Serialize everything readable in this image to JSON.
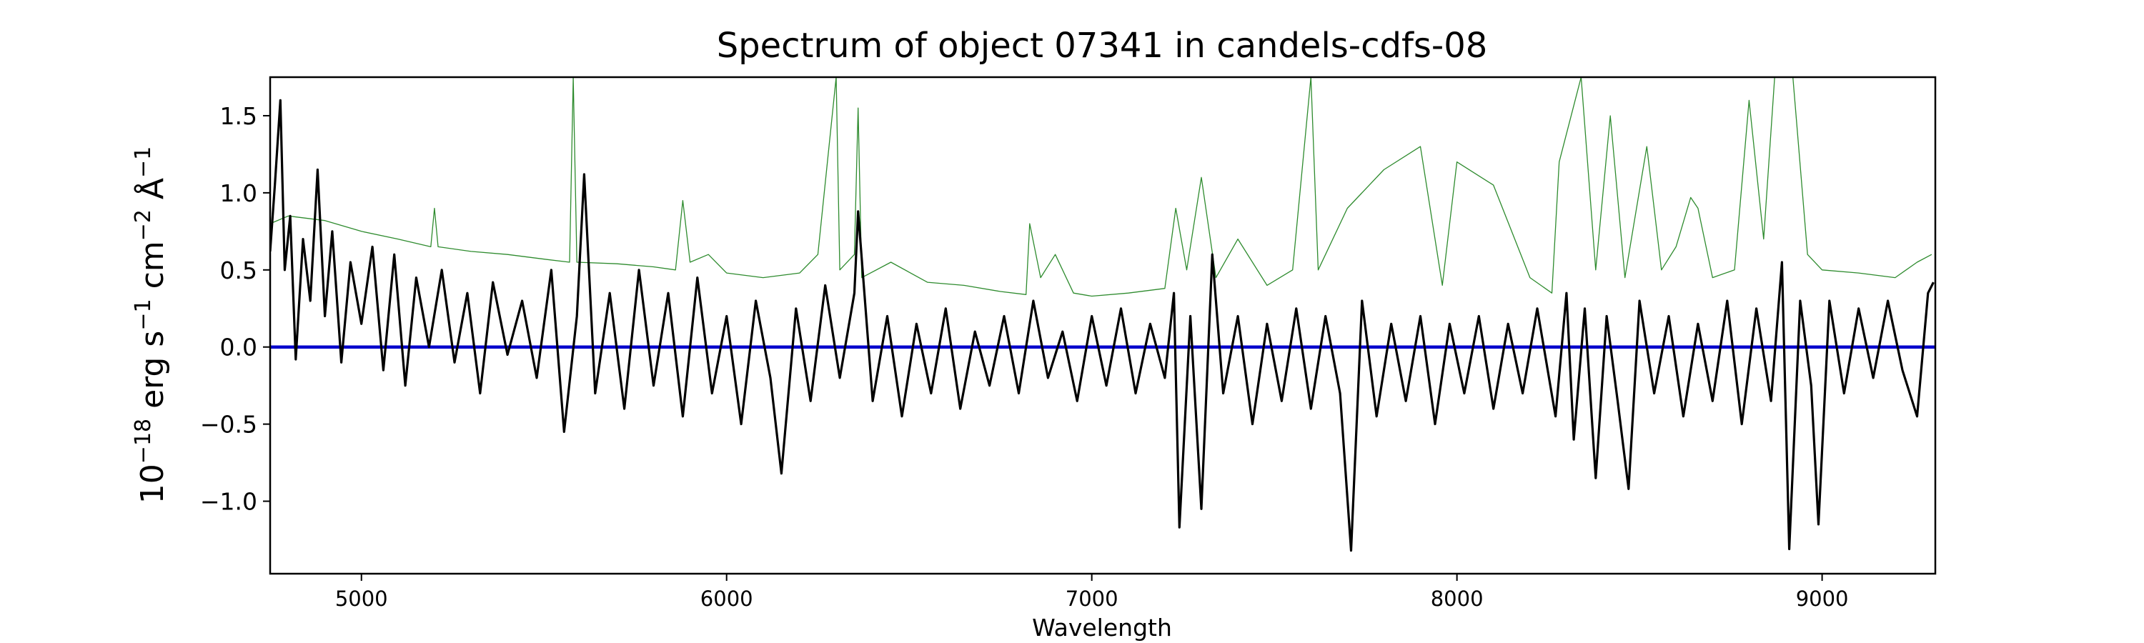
{
  "chart_data": {
    "type": "line",
    "title": "Spectrum of object 07341 in candels-cdfs-08",
    "xlabel": "Wavelength",
    "ylabel": {
      "base": "10",
      "exp1": "−18",
      "w1": " erg s",
      "exp2": "−1",
      "w2": " cm",
      "exp3": "−2",
      "w3": " Å",
      "exp4": "−1"
    },
    "xlim": [
      4750,
      9310
    ],
    "ylim": [
      -1.47,
      1.75
    ],
    "x_ticks": [
      5000,
      6000,
      7000,
      8000,
      9000
    ],
    "x_tick_labels": [
      "5000",
      "6000",
      "7000",
      "8000",
      "9000"
    ],
    "y_ticks": [
      -1.0,
      -0.5,
      0.0,
      0.5,
      1.0,
      1.5
    ],
    "y_tick_labels": [
      "−1.0",
      "−0.5",
      "0.0",
      "0.5",
      "1.0",
      "1.5"
    ],
    "grid": false,
    "legend": "none",
    "series": [
      {
        "role": "flux",
        "color": "#000000",
        "points": [
          [
            4750,
            0.62
          ],
          [
            4763,
            1.05
          ],
          [
            4778,
            1.6
          ],
          [
            4790,
            0.5
          ],
          [
            4805,
            0.85
          ],
          [
            4820,
            -0.08
          ],
          [
            4840,
            0.7
          ],
          [
            4860,
            0.3
          ],
          [
            4880,
            1.15
          ],
          [
            4900,
            0.2
          ],
          [
            4920,
            0.75
          ],
          [
            4945,
            -0.1
          ],
          [
            4970,
            0.55
          ],
          [
            5000,
            0.15
          ],
          [
            5030,
            0.65
          ],
          [
            5060,
            -0.15
          ],
          [
            5090,
            0.6
          ],
          [
            5120,
            -0.25
          ],
          [
            5150,
            0.45
          ],
          [
            5185,
            0.0
          ],
          [
            5220,
            0.5
          ],
          [
            5255,
            -0.1
          ],
          [
            5290,
            0.35
          ],
          [
            5325,
            -0.3
          ],
          [
            5360,
            0.42
          ],
          [
            5400,
            -0.05
          ],
          [
            5440,
            0.3
          ],
          [
            5480,
            -0.2
          ],
          [
            5520,
            0.5
          ],
          [
            5555,
            -0.55
          ],
          [
            5590,
            0.2
          ],
          [
            5610,
            1.12
          ],
          [
            5640,
            -0.3
          ],
          [
            5680,
            0.35
          ],
          [
            5720,
            -0.4
          ],
          [
            5760,
            0.5
          ],
          [
            5800,
            -0.25
          ],
          [
            5840,
            0.35
          ],
          [
            5880,
            -0.45
          ],
          [
            5920,
            0.45
          ],
          [
            5960,
            -0.3
          ],
          [
            6000,
            0.2
          ],
          [
            6040,
            -0.5
          ],
          [
            6080,
            0.3
          ],
          [
            6120,
            -0.2
          ],
          [
            6150,
            -0.82
          ],
          [
            6190,
            0.25
          ],
          [
            6230,
            -0.35
          ],
          [
            6270,
            0.4
          ],
          [
            6310,
            -0.2
          ],
          [
            6350,
            0.35
          ],
          [
            6360,
            0.88
          ],
          [
            6400,
            -0.35
          ],
          [
            6440,
            0.2
          ],
          [
            6480,
            -0.45
          ],
          [
            6520,
            0.15
          ],
          [
            6560,
            -0.3
          ],
          [
            6600,
            0.25
          ],
          [
            6640,
            -0.4
          ],
          [
            6680,
            0.1
          ],
          [
            6720,
            -0.25
          ],
          [
            6760,
            0.2
          ],
          [
            6800,
            -0.3
          ],
          [
            6840,
            0.3
          ],
          [
            6880,
            -0.2
          ],
          [
            6920,
            0.1
          ],
          [
            6960,
            -0.35
          ],
          [
            7000,
            0.2
          ],
          [
            7040,
            -0.25
          ],
          [
            7080,
            0.25
          ],
          [
            7120,
            -0.3
          ],
          [
            7160,
            0.15
          ],
          [
            7200,
            -0.2
          ],
          [
            7225,
            0.35
          ],
          [
            7240,
            -1.17
          ],
          [
            7270,
            0.2
          ],
          [
            7300,
            -1.05
          ],
          [
            7330,
            0.6
          ],
          [
            7360,
            -0.3
          ],
          [
            7400,
            0.2
          ],
          [
            7440,
            -0.5
          ],
          [
            7480,
            0.15
          ],
          [
            7520,
            -0.35
          ],
          [
            7560,
            0.25
          ],
          [
            7600,
            -0.4
          ],
          [
            7640,
            0.2
          ],
          [
            7680,
            -0.3
          ],
          [
            7710,
            -1.32
          ],
          [
            7740,
            0.3
          ],
          [
            7780,
            -0.45
          ],
          [
            7820,
            0.15
          ],
          [
            7860,
            -0.35
          ],
          [
            7900,
            0.2
          ],
          [
            7940,
            -0.5
          ],
          [
            7980,
            0.15
          ],
          [
            8020,
            -0.3
          ],
          [
            8060,
            0.2
          ],
          [
            8100,
            -0.4
          ],
          [
            8140,
            0.15
          ],
          [
            8180,
            -0.3
          ],
          [
            8220,
            0.25
          ],
          [
            8270,
            -0.45
          ],
          [
            8300,
            0.35
          ],
          [
            8320,
            -0.6
          ],
          [
            8350,
            0.25
          ],
          [
            8380,
            -0.85
          ],
          [
            8410,
            0.2
          ],
          [
            8440,
            -0.35
          ],
          [
            8470,
            -0.92
          ],
          [
            8500,
            0.3
          ],
          [
            8540,
            -0.3
          ],
          [
            8580,
            0.2
          ],
          [
            8620,
            -0.45
          ],
          [
            8660,
            0.15
          ],
          [
            8700,
            -0.35
          ],
          [
            8740,
            0.3
          ],
          [
            8780,
            -0.5
          ],
          [
            8820,
            0.25
          ],
          [
            8860,
            -0.35
          ],
          [
            8890,
            0.55
          ],
          [
            8910,
            -1.31
          ],
          [
            8940,
            0.3
          ],
          [
            8970,
            -0.25
          ],
          [
            8990,
            -1.15
          ],
          [
            9020,
            0.3
          ],
          [
            9060,
            -0.3
          ],
          [
            9100,
            0.25
          ],
          [
            9140,
            -0.2
          ],
          [
            9180,
            0.3
          ],
          [
            9220,
            -0.15
          ],
          [
            9260,
            -0.45
          ],
          [
            9290,
            0.35
          ],
          [
            9305,
            0.42
          ]
        ]
      },
      {
        "role": "zero",
        "color": "#0000cc",
        "points": [
          [
            4750,
            0.0
          ],
          [
            9310,
            0.0
          ]
        ]
      },
      {
        "role": "error",
        "color": "#2e8b2e",
        "points": [
          [
            4750,
            0.8
          ],
          [
            4800,
            0.85
          ],
          [
            4900,
            0.82
          ],
          [
            5000,
            0.75
          ],
          [
            5100,
            0.7
          ],
          [
            5190,
            0.65
          ],
          [
            5200,
            0.9
          ],
          [
            5210,
            0.65
          ],
          [
            5300,
            0.62
          ],
          [
            5400,
            0.6
          ],
          [
            5500,
            0.57
          ],
          [
            5570,
            0.55
          ],
          [
            5580,
            1.75
          ],
          [
            5590,
            0.55
          ],
          [
            5700,
            0.54
          ],
          [
            5800,
            0.52
          ],
          [
            5860,
            0.5
          ],
          [
            5880,
            0.95
          ],
          [
            5900,
            0.55
          ],
          [
            5950,
            0.6
          ],
          [
            6000,
            0.48
          ],
          [
            6100,
            0.45
          ],
          [
            6200,
            0.48
          ],
          [
            6250,
            0.6
          ],
          [
            6300,
            1.75
          ],
          [
            6310,
            0.5
          ],
          [
            6350,
            0.6
          ],
          [
            6360,
            1.55
          ],
          [
            6370,
            0.45
          ],
          [
            6450,
            0.55
          ],
          [
            6550,
            0.42
          ],
          [
            6650,
            0.4
          ],
          [
            6750,
            0.36
          ],
          [
            6820,
            0.34
          ],
          [
            6830,
            0.8
          ],
          [
            6860,
            0.45
          ],
          [
            6900,
            0.6
          ],
          [
            6950,
            0.35
          ],
          [
            7000,
            0.33
          ],
          [
            7100,
            0.35
          ],
          [
            7200,
            0.38
          ],
          [
            7230,
            0.9
          ],
          [
            7260,
            0.5
          ],
          [
            7300,
            1.1
          ],
          [
            7340,
            0.45
          ],
          [
            7400,
            0.7
          ],
          [
            7480,
            0.4
          ],
          [
            7550,
            0.5
          ],
          [
            7600,
            1.75
          ],
          [
            7620,
            0.5
          ],
          [
            7700,
            0.9
          ],
          [
            7800,
            1.15
          ],
          [
            7900,
            1.3
          ],
          [
            7960,
            0.4
          ],
          [
            8000,
            1.2
          ],
          [
            8100,
            1.05
          ],
          [
            8200,
            0.45
          ],
          [
            8260,
            0.35
          ],
          [
            8280,
            1.2
          ],
          [
            8340,
            1.75
          ],
          [
            8380,
            0.5
          ],
          [
            8420,
            1.5
          ],
          [
            8460,
            0.45
          ],
          [
            8520,
            1.3
          ],
          [
            8560,
            0.5
          ],
          [
            8600,
            0.65
          ],
          [
            8640,
            0.97
          ],
          [
            8660,
            0.9
          ],
          [
            8700,
            0.45
          ],
          [
            8760,
            0.5
          ],
          [
            8800,
            1.6
          ],
          [
            8840,
            0.7
          ],
          [
            8870,
            1.75
          ],
          [
            8920,
            1.75
          ],
          [
            8960,
            0.6
          ],
          [
            9000,
            0.5
          ],
          [
            9100,
            0.48
          ],
          [
            9200,
            0.45
          ],
          [
            9260,
            0.55
          ],
          [
            9300,
            0.6
          ]
        ]
      }
    ]
  }
}
